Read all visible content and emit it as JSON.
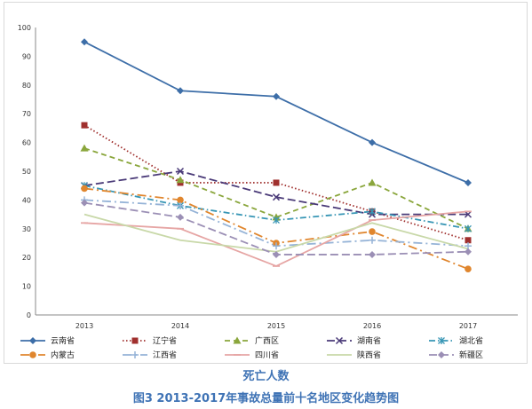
{
  "chart_data": {
    "type": "line",
    "title": "",
    "xlabel": "死亡人数",
    "ylabel": "",
    "categories": [
      "2013",
      "2014",
      "2015",
      "2016",
      "2017"
    ],
    "ylim": [
      0,
      100
    ],
    "yticks": [
      0,
      10,
      20,
      30,
      40,
      50,
      60,
      70,
      80,
      90,
      100
    ],
    "grid": false,
    "legend_position": "bottom",
    "series": [
      {
        "name": "云南省",
        "values": [
          95,
          78,
          76,
          60,
          46
        ],
        "color": "#3d6ea8",
        "dash": "solid",
        "marker": "diamond"
      },
      {
        "name": "辽宁省",
        "values": [
          66,
          46,
          46,
          36,
          26
        ],
        "color": "#a0302e",
        "dash": "dot",
        "marker": "square"
      },
      {
        "name": "广西区",
        "values": [
          58,
          47,
          34,
          46,
          30
        ],
        "color": "#8aa63c",
        "dash": "dash",
        "marker": "triangle"
      },
      {
        "name": "湖南省",
        "values": [
          45,
          50,
          41,
          35,
          35
        ],
        "color": "#4a3a78",
        "dash": "longdash",
        "marker": "x"
      },
      {
        "name": "湖北省",
        "values": [
          45,
          38,
          33,
          36,
          30
        ],
        "color": "#3896b5",
        "dash": "dashdot",
        "marker": "star"
      },
      {
        "name": "内蒙古",
        "values": [
          44,
          40,
          25,
          29,
          16
        ],
        "color": "#e0862e",
        "dash": "longdashdot",
        "marker": "circle"
      },
      {
        "name": "江西省",
        "values": [
          40,
          38,
          24,
          26,
          24
        ],
        "color": "#95b3d7",
        "dash": "longdashdot",
        "marker": "plus"
      },
      {
        "name": "四川省",
        "values": [
          32,
          30,
          17,
          33,
          36
        ],
        "color": "#e6a5a4",
        "dash": "solid",
        "marker": "dash"
      },
      {
        "name": "陕西省",
        "values": [
          35,
          26,
          22,
          32,
          23
        ],
        "color": "#c8d8a8",
        "dash": "solid",
        "marker": "none"
      },
      {
        "name": "新疆区",
        "values": [
          39,
          34,
          21,
          21,
          22
        ],
        "color": "#9b8fb5",
        "dash": "longdash",
        "marker": "diamond"
      }
    ]
  },
  "caption": "图3  2013-2017年事故总量前十名地区变化趋势图"
}
